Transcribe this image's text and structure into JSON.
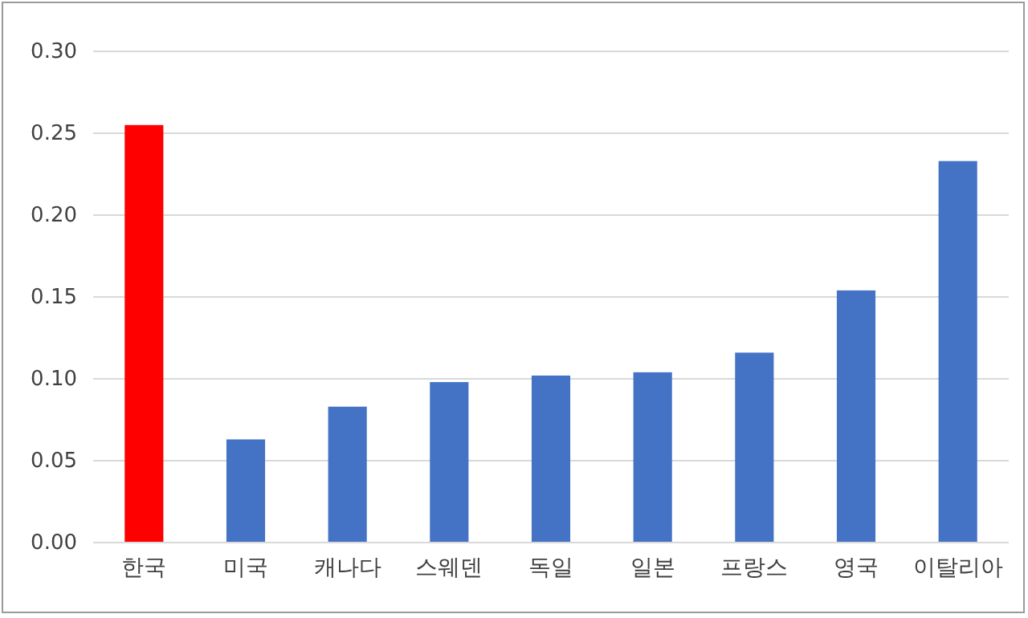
{
  "chart_data": {
    "type": "bar",
    "categories": [
      "한국",
      "미국",
      "캐나다",
      "스웨덴",
      "독일",
      "일본",
      "프랑스",
      "영국",
      "이탈리아"
    ],
    "values": [
      0.255,
      0.063,
      0.083,
      0.098,
      0.102,
      0.104,
      0.116,
      0.154,
      0.233
    ],
    "colors": [
      "#ff0000",
      "#4472c4",
      "#4472c4",
      "#4472c4",
      "#4472c4",
      "#4472c4",
      "#4472c4",
      "#4472c4",
      "#4472c4"
    ],
    "ylim": [
      0,
      0.3
    ],
    "yticks": [
      {
        "value": 0,
        "label": "0.00"
      },
      {
        "value": 0.05,
        "label": "0.05"
      },
      {
        "value": 0.1,
        "label": "0.10"
      },
      {
        "value": 0.15,
        "label": "0.15"
      },
      {
        "value": 0.2,
        "label": "0.20"
      },
      {
        "value": 0.25,
        "label": "0.25"
      },
      {
        "value": 0.3,
        "label": "0.30"
      }
    ],
    "grid": "y"
  }
}
